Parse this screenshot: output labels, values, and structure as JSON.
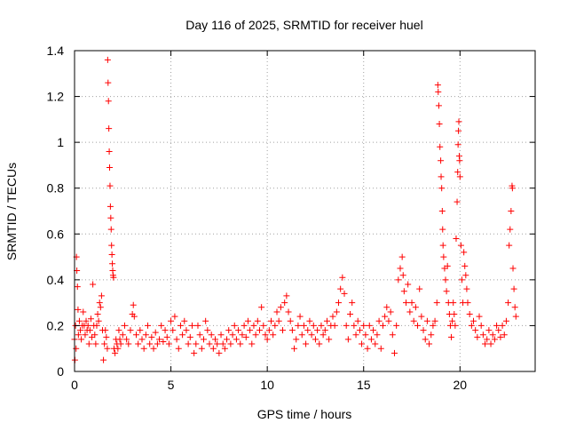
{
  "chart_data": {
    "type": "scatter",
    "title": "Day 116 of 2025, SRMTID for receiver huel",
    "xlabel": "GPS time / hours",
    "ylabel": "SRMTID / TECUs",
    "xlim": [
      0,
      23.9
    ],
    "ylim": [
      0,
      1.4
    ],
    "xticks": [
      0,
      5,
      10,
      15,
      20
    ],
    "xtick_labels": [
      "0",
      "5",
      "10",
      "15",
      "20"
    ],
    "yticks": [
      0,
      0.2,
      0.4,
      0.6,
      0.8,
      1.0,
      1.2,
      1.4
    ],
    "ytick_labels": [
      "0",
      "0.2",
      "0.4",
      "0.6",
      "0.8",
      "1",
      "1.2",
      "1.4"
    ],
    "grid": true,
    "marker": "+",
    "color": "#ff0000",
    "series": [
      {
        "name": "SRMTID",
        "points": [
          [
            0.0,
            0.14
          ],
          [
            0.02,
            0.05
          ],
          [
            0.05,
            0.2
          ],
          [
            0.08,
            0.1
          ],
          [
            0.1,
            0.5
          ],
          [
            0.12,
            0.44
          ],
          [
            0.15,
            0.37
          ],
          [
            0.18,
            0.27
          ],
          [
            0.2,
            0.16
          ],
          [
            0.25,
            0.22
          ],
          [
            0.3,
            0.18
          ],
          [
            0.35,
            0.14
          ],
          [
            0.4,
            0.2
          ],
          [
            0.45,
            0.26
          ],
          [
            0.5,
            0.2
          ],
          [
            0.55,
            0.16
          ],
          [
            0.6,
            0.22
          ],
          [
            0.65,
            0.18
          ],
          [
            0.7,
            0.2
          ],
          [
            0.75,
            0.12
          ],
          [
            0.8,
            0.18
          ],
          [
            0.85,
            0.23
          ],
          [
            0.9,
            0.15
          ],
          [
            0.95,
            0.38
          ],
          [
            1.0,
            0.2
          ],
          [
            1.05,
            0.16
          ],
          [
            1.1,
            0.12
          ],
          [
            1.15,
            0.2
          ],
          [
            1.2,
            0.25
          ],
          [
            1.25,
            0.22
          ],
          [
            1.3,
            0.3
          ],
          [
            1.35,
            0.28
          ],
          [
            1.4,
            0.33
          ],
          [
            1.45,
            0.18
          ],
          [
            1.5,
            0.05
          ],
          [
            1.55,
            0.12
          ],
          [
            1.6,
            0.18
          ],
          [
            1.65,
            0.15
          ],
          [
            1.7,
            0.1
          ],
          [
            1.72,
            1.36
          ],
          [
            1.74,
            1.26
          ],
          [
            1.76,
            1.18
          ],
          [
            1.78,
            1.06
          ],
          [
            1.8,
            0.96
          ],
          [
            1.82,
            0.89
          ],
          [
            1.84,
            0.81
          ],
          [
            1.86,
            0.72
          ],
          [
            1.88,
            0.67
          ],
          [
            1.9,
            0.62
          ],
          [
            1.92,
            0.55
          ],
          [
            1.94,
            0.51
          ],
          [
            1.96,
            0.47
          ],
          [
            1.98,
            0.44
          ],
          [
            2.0,
            0.42
          ],
          [
            2.02,
            0.41
          ],
          [
            2.05,
            0.1
          ],
          [
            2.1,
            0.08
          ],
          [
            2.15,
            0.14
          ],
          [
            2.2,
            0.12
          ],
          [
            2.25,
            0.1
          ],
          [
            2.3,
            0.18
          ],
          [
            2.35,
            0.14
          ],
          [
            2.4,
            0.12
          ],
          [
            2.5,
            0.16
          ],
          [
            2.6,
            0.2
          ],
          [
            2.7,
            0.14
          ],
          [
            2.8,
            0.12
          ],
          [
            2.9,
            0.18
          ],
          [
            3.0,
            0.25
          ],
          [
            3.05,
            0.29
          ],
          [
            3.1,
            0.24
          ],
          [
            3.2,
            0.16
          ],
          [
            3.3,
            0.12
          ],
          [
            3.4,
            0.18
          ],
          [
            3.5,
            0.14
          ],
          [
            3.6,
            0.1
          ],
          [
            3.7,
            0.16
          ],
          [
            3.8,
            0.2
          ],
          [
            3.9,
            0.12
          ],
          [
            4.0,
            0.15
          ],
          [
            4.1,
            0.1
          ],
          [
            4.2,
            0.17
          ],
          [
            4.3,
            0.12
          ],
          [
            4.4,
            0.14
          ],
          [
            4.5,
            0.2
          ],
          [
            4.6,
            0.13
          ],
          [
            4.7,
            0.18
          ],
          [
            4.8,
            0.15
          ],
          [
            4.9,
            0.12
          ],
          [
            5.0,
            0.22
          ],
          [
            5.1,
            0.18
          ],
          [
            5.2,
            0.24
          ],
          [
            5.3,
            0.14
          ],
          [
            5.4,
            0.1
          ],
          [
            5.5,
            0.2
          ],
          [
            5.6,
            0.16
          ],
          [
            5.7,
            0.22
          ],
          [
            5.8,
            0.18
          ],
          [
            5.9,
            0.12
          ],
          [
            6.0,
            0.15
          ],
          [
            6.1,
            0.2
          ],
          [
            6.2,
            0.08
          ],
          [
            6.3,
            0.12
          ],
          [
            6.4,
            0.2
          ],
          [
            6.5,
            0.16
          ],
          [
            6.6,
            0.1
          ],
          [
            6.7,
            0.14
          ],
          [
            6.8,
            0.22
          ],
          [
            6.9,
            0.18
          ],
          [
            7.0,
            0.12
          ],
          [
            7.1,
            0.16
          ],
          [
            7.2,
            0.1
          ],
          [
            7.3,
            0.14
          ],
          [
            7.4,
            0.12
          ],
          [
            7.5,
            0.08
          ],
          [
            7.6,
            0.16
          ],
          [
            7.7,
            0.12
          ],
          [
            7.8,
            0.1
          ],
          [
            7.9,
            0.14
          ],
          [
            8.0,
            0.18
          ],
          [
            8.1,
            0.12
          ],
          [
            8.2,
            0.16
          ],
          [
            8.3,
            0.2
          ],
          [
            8.4,
            0.14
          ],
          [
            8.5,
            0.18
          ],
          [
            8.6,
            0.12
          ],
          [
            8.7,
            0.16
          ],
          [
            8.8,
            0.2
          ],
          [
            8.9,
            0.15
          ],
          [
            9.0,
            0.22
          ],
          [
            9.1,
            0.18
          ],
          [
            9.2,
            0.12
          ],
          [
            9.3,
            0.2
          ],
          [
            9.4,
            0.16
          ],
          [
            9.5,
            0.22
          ],
          [
            9.6,
            0.18
          ],
          [
            9.7,
            0.28
          ],
          [
            9.8,
            0.2
          ],
          [
            9.9,
            0.16
          ],
          [
            10.0,
            0.14
          ],
          [
            10.1,
            0.18
          ],
          [
            10.2,
            0.22
          ],
          [
            10.3,
            0.16
          ],
          [
            10.4,
            0.2
          ],
          [
            10.5,
            0.26
          ],
          [
            10.6,
            0.22
          ],
          [
            10.7,
            0.28
          ],
          [
            10.8,
            0.18
          ],
          [
            10.9,
            0.3
          ],
          [
            11.0,
            0.33
          ],
          [
            11.1,
            0.26
          ],
          [
            11.2,
            0.22
          ],
          [
            11.3,
            0.18
          ],
          [
            11.4,
            0.1
          ],
          [
            11.5,
            0.14
          ],
          [
            11.6,
            0.2
          ],
          [
            11.7,
            0.24
          ],
          [
            11.8,
            0.16
          ],
          [
            11.9,
            0.2
          ],
          [
            12.0,
            0.12
          ],
          [
            12.1,
            0.18
          ],
          [
            12.2,
            0.22
          ],
          [
            12.3,
            0.16
          ],
          [
            12.4,
            0.2
          ],
          [
            12.5,
            0.14
          ],
          [
            12.6,
            0.18
          ],
          [
            12.7,
            0.12
          ],
          [
            12.8,
            0.2
          ],
          [
            12.9,
            0.16
          ],
          [
            13.0,
            0.18
          ],
          [
            13.1,
            0.22
          ],
          [
            13.2,
            0.14
          ],
          [
            13.3,
            0.2
          ],
          [
            13.4,
            0.24
          ],
          [
            13.5,
            0.2
          ],
          [
            13.6,
            0.26
          ],
          [
            13.7,
            0.3
          ],
          [
            13.8,
            0.36
          ],
          [
            13.9,
            0.41
          ],
          [
            14.0,
            0.34
          ],
          [
            14.1,
            0.2
          ],
          [
            14.2,
            0.14
          ],
          [
            14.3,
            0.25
          ],
          [
            14.4,
            0.3
          ],
          [
            14.5,
            0.2
          ],
          [
            14.6,
            0.16
          ],
          [
            14.7,
            0.22
          ],
          [
            14.8,
            0.18
          ],
          [
            14.9,
            0.12
          ],
          [
            15.0,
            0.2
          ],
          [
            15.1,
            0.16
          ],
          [
            15.2,
            0.1
          ],
          [
            15.3,
            0.2
          ],
          [
            15.4,
            0.14
          ],
          [
            15.5,
            0.18
          ],
          [
            15.6,
            0.12
          ],
          [
            15.7,
            0.16
          ],
          [
            15.8,
            0.22
          ],
          [
            15.9,
            0.1
          ],
          [
            16.0,
            0.2
          ],
          [
            16.1,
            0.24
          ],
          [
            16.2,
            0.28
          ],
          [
            16.3,
            0.22
          ],
          [
            16.4,
            0.26
          ],
          [
            16.5,
            0.16
          ],
          [
            16.6,
            0.08
          ],
          [
            16.7,
            0.2
          ],
          [
            16.8,
            0.4
          ],
          [
            16.9,
            0.45
          ],
          [
            17.0,
            0.5
          ],
          [
            17.05,
            0.42
          ],
          [
            17.1,
            0.35
          ],
          [
            17.2,
            0.3
          ],
          [
            17.3,
            0.38
          ],
          [
            17.4,
            0.26
          ],
          [
            17.5,
            0.3
          ],
          [
            17.6,
            0.22
          ],
          [
            17.7,
            0.28
          ],
          [
            17.8,
            0.2
          ],
          [
            17.9,
            0.36
          ],
          [
            18.0,
            0.24
          ],
          [
            18.1,
            0.18
          ],
          [
            18.2,
            0.14
          ],
          [
            18.3,
            0.22
          ],
          [
            18.4,
            0.12
          ],
          [
            18.5,
            0.16
          ],
          [
            18.6,
            0.2
          ],
          [
            18.7,
            0.22
          ],
          [
            18.8,
            0.3
          ],
          [
            18.85,
            1.25
          ],
          [
            18.87,
            1.22
          ],
          [
            18.9,
            1.16
          ],
          [
            18.93,
            1.08
          ],
          [
            18.96,
            0.98
          ],
          [
            19.0,
            0.92
          ],
          [
            19.02,
            0.85
          ],
          [
            19.05,
            0.8
          ],
          [
            19.08,
            0.7
          ],
          [
            19.1,
            0.62
          ],
          [
            19.12,
            0.55
          ],
          [
            19.15,
            0.5
          ],
          [
            19.2,
            0.45
          ],
          [
            19.25,
            0.4
          ],
          [
            19.3,
            0.35
          ],
          [
            19.35,
            0.46
          ],
          [
            19.4,
            0.3
          ],
          [
            19.45,
            0.25
          ],
          [
            19.5,
            0.2
          ],
          [
            19.55,
            0.15
          ],
          [
            19.6,
            0.22
          ],
          [
            19.65,
            0.3
          ],
          [
            19.7,
            0.25
          ],
          [
            19.75,
            0.2
          ],
          [
            19.8,
            0.58
          ],
          [
            19.85,
            0.74
          ],
          [
            19.88,
            0.87
          ],
          [
            19.9,
            0.99
          ],
          [
            19.92,
            1.05
          ],
          [
            19.94,
            1.09
          ],
          [
            19.96,
            0.94
          ],
          [
            19.98,
            0.92
          ],
          [
            20.0,
            0.85
          ],
          [
            20.05,
            0.55
          ],
          [
            20.1,
            0.4
          ],
          [
            20.15,
            0.3
          ],
          [
            20.2,
            0.52
          ],
          [
            20.25,
            0.46
          ],
          [
            20.3,
            0.42
          ],
          [
            20.35,
            0.36
          ],
          [
            20.4,
            0.3
          ],
          [
            20.5,
            0.25
          ],
          [
            20.6,
            0.2
          ],
          [
            20.7,
            0.22
          ],
          [
            20.8,
            0.18
          ],
          [
            20.9,
            0.15
          ],
          [
            21.0,
            0.24
          ],
          [
            21.1,
            0.2
          ],
          [
            21.2,
            0.16
          ],
          [
            21.3,
            0.12
          ],
          [
            21.4,
            0.14
          ],
          [
            21.5,
            0.18
          ],
          [
            21.6,
            0.12
          ],
          [
            21.7,
            0.16
          ],
          [
            21.8,
            0.14
          ],
          [
            21.9,
            0.2
          ],
          [
            22.0,
            0.18
          ],
          [
            22.1,
            0.15
          ],
          [
            22.2,
            0.2
          ],
          [
            22.3,
            0.16
          ],
          [
            22.4,
            0.22
          ],
          [
            22.5,
            0.3
          ],
          [
            22.55,
            0.55
          ],
          [
            22.6,
            0.62
          ],
          [
            22.65,
            0.7
          ],
          [
            22.7,
            0.81
          ],
          [
            22.72,
            0.8
          ],
          [
            22.75,
            0.45
          ],
          [
            22.8,
            0.36
          ],
          [
            22.85,
            0.28
          ],
          [
            22.9,
            0.24
          ]
        ]
      }
    ]
  }
}
